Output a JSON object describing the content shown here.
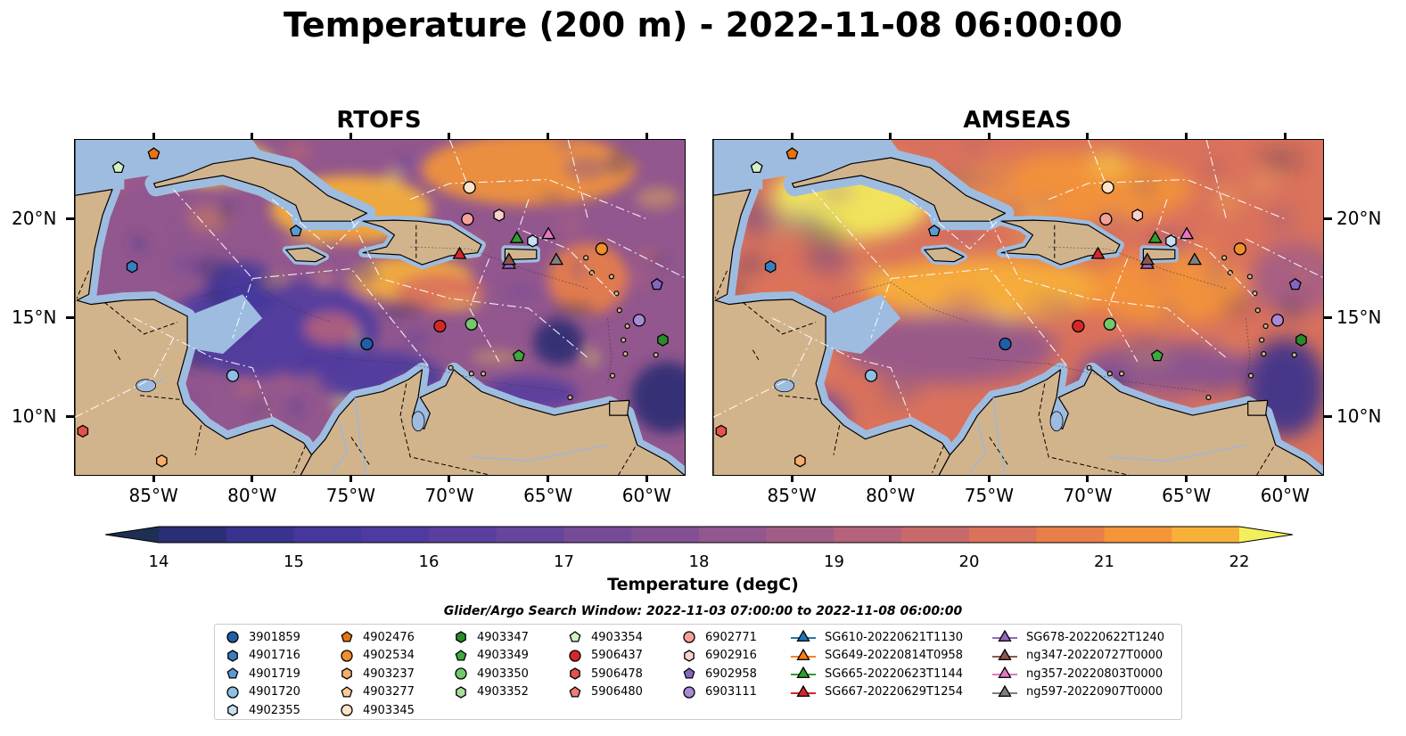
{
  "title": "Temperature (200 m) - 2022-11-08 06:00:00",
  "panels": [
    {
      "title": "RTOFS"
    },
    {
      "title": "AMSEAS"
    }
  ],
  "axes": {
    "lon_ticks": [
      "85°W",
      "80°W",
      "75°W",
      "70°W",
      "65°W",
      "60°W"
    ],
    "lat_ticks": [
      "20°N",
      "15°N",
      "10°N"
    ]
  },
  "colorbar": {
    "label": "Temperature (degC)",
    "ticks": [
      "14",
      "15",
      "16",
      "17",
      "18",
      "19",
      "20",
      "21",
      "22"
    ],
    "min": 14,
    "max": 22,
    "step": 0.5,
    "colors": [
      "#1d2f52",
      "#2b2e73",
      "#39328e",
      "#45379c",
      "#4e3aa0",
      "#5a3f9f",
      "#67459d",
      "#754b98",
      "#835193",
      "#92578e",
      "#a25d86",
      "#b5627c",
      "#c86a6c",
      "#da725c",
      "#e97f48",
      "#f49538",
      "#f8b138",
      "#fad042",
      "#f3ef5c"
    ],
    "extend": "both",
    "cmap": "thermal"
  },
  "search_window": "Glider/Argo Search Window: 2022-11-03 07:00:00 to 2022-11-08 06:00:00",
  "legend": {
    "columns": [
      [
        {
          "label": "3901859",
          "marker": "circle",
          "color": "#1f5fa8"
        },
        {
          "label": "4901716",
          "marker": "hexagon",
          "color": "#3a7ebf"
        },
        {
          "label": "4901719",
          "marker": "pentagon",
          "color": "#5a9bd4"
        },
        {
          "label": "4901720",
          "marker": "circle",
          "color": "#8ec0e4"
        },
        {
          "label": "4902355",
          "marker": "hexagon",
          "color": "#c6e0f3"
        }
      ],
      [
        {
          "label": "4902476",
          "marker": "pentagon",
          "color": "#e8740c"
        },
        {
          "label": "4902534",
          "marker": "circle",
          "color": "#f28e2b"
        },
        {
          "label": "4903237",
          "marker": "hexagon",
          "color": "#f8ad6a"
        },
        {
          "label": "4903277",
          "marker": "pentagon",
          "color": "#fbc998"
        },
        {
          "label": "4903345",
          "marker": "circle",
          "color": "#fde3c8"
        }
      ],
      [
        {
          "label": "4903347",
          "marker": "hexagon",
          "color": "#2b8a2b"
        },
        {
          "label": "4903349",
          "marker": "pentagon",
          "color": "#3fa83f"
        },
        {
          "label": "4903350",
          "marker": "circle",
          "color": "#72c96a"
        },
        {
          "label": "4903352",
          "marker": "hexagon",
          "color": "#a6df9a"
        }
      ],
      [
        {
          "label": "4903354",
          "marker": "pentagon",
          "color": "#d2f2c6"
        },
        {
          "label": "5906437",
          "marker": "circle",
          "color": "#d62728"
        },
        {
          "label": "5906478",
          "marker": "hexagon",
          "color": "#e2524c"
        },
        {
          "label": "5906480",
          "marker": "pentagon",
          "color": "#ec7c74"
        }
      ],
      [
        {
          "label": "6902771",
          "marker": "circle",
          "color": "#f4a19a"
        },
        {
          "label": "6902916",
          "marker": "hexagon",
          "color": "#fbd0cb"
        },
        {
          "label": "6902958",
          "marker": "pentagon",
          "color": "#8466c2"
        },
        {
          "label": "6903111",
          "marker": "circle",
          "color": "#a98ad6"
        }
      ],
      [
        {
          "label": "SG610-20220621T1130",
          "marker": "triangle",
          "color": "#1f77b4"
        },
        {
          "label": "SG649-20220814T0958",
          "marker": "triangle",
          "color": "#ff7f0e"
        },
        {
          "label": "SG665-20220623T1144",
          "marker": "triangle",
          "color": "#2ca02c"
        },
        {
          "label": "SG667-20220629T1254",
          "marker": "triangle",
          "color": "#d62728"
        }
      ],
      [
        {
          "label": "SG678-20220622T1240",
          "marker": "triangle",
          "color": "#9467bd"
        },
        {
          "label": "ng347-20220727T0000",
          "marker": "triangle",
          "color": "#8c564b"
        },
        {
          "label": "ng357-20220803T0000",
          "marker": "triangle",
          "color": "#e377c2"
        },
        {
          "label": "ng597-20220907T0000",
          "marker": "triangle",
          "color": "#7f7f7f"
        }
      ]
    ]
  },
  "chart_data": {
    "type": "heatmap",
    "variable": "Temperature (200 m)",
    "units": "degC",
    "lon_range": [
      -89,
      -58
    ],
    "lat_range": [
      7,
      24
    ],
    "color_range": [
      14,
      22
    ],
    "land_color": "#d2b48c",
    "shelf_color": "#9ebce0",
    "observations": [
      {
        "id": "4903354",
        "lon": -86.8,
        "lat": 22.6,
        "marker": "pentagon",
        "color": "#d2f2c6"
      },
      {
        "id": "4902476",
        "lon": -85.0,
        "lat": 23.3,
        "marker": "pentagon",
        "color": "#e8740c"
      },
      {
        "id": "4901716",
        "lon": -86.1,
        "lat": 17.6,
        "marker": "hexagon",
        "color": "#3a7ebf"
      },
      {
        "id": "4901719",
        "lon": -77.8,
        "lat": 19.4,
        "marker": "pentagon",
        "color": "#5a9bd4"
      },
      {
        "id": "4903345",
        "lon": -69.0,
        "lat": 21.6,
        "marker": "circle",
        "color": "#fde3c8"
      },
      {
        "id": "6902771",
        "lon": -69.1,
        "lat": 20.0,
        "marker": "circle",
        "color": "#f4a19a"
      },
      {
        "id": "6902916",
        "lon": -67.5,
        "lat": 20.2,
        "marker": "hexagon",
        "color": "#fbd0cb"
      },
      {
        "id": "SG665-20220623T1144",
        "lon": -66.6,
        "lat": 19.0,
        "marker": "triangle",
        "color": "#2ca02c"
      },
      {
        "id": "4902355",
        "lon": -65.8,
        "lat": 18.9,
        "marker": "hexagon",
        "color": "#c6e0f3"
      },
      {
        "id": "ng357-20220803T0000",
        "lon": -65.0,
        "lat": 19.2,
        "marker": "triangle",
        "color": "#e377c2"
      },
      {
        "id": "SG667-20220629T1254",
        "lon": -69.5,
        "lat": 18.2,
        "marker": "triangle",
        "color": "#d62728"
      },
      {
        "id": "SG678-20220622T1240",
        "lon": -67.0,
        "lat": 17.7,
        "marker": "triangle",
        "color": "#9467bd"
      },
      {
        "id": "ng347-20220727T0000",
        "lon": -67.0,
        "lat": 17.9,
        "marker": "triangle",
        "color": "#8c564b"
      },
      {
        "id": "ng597-20220907T0000",
        "lon": -64.6,
        "lat": 17.9,
        "marker": "triangle",
        "color": "#7f7f7f"
      },
      {
        "id": "4902534",
        "lon": -62.3,
        "lat": 18.5,
        "marker": "circle",
        "color": "#f28e2b"
      },
      {
        "id": "6902958",
        "lon": -59.5,
        "lat": 16.7,
        "marker": "pentagon",
        "color": "#8466c2"
      },
      {
        "id": "6903111",
        "lon": -60.4,
        "lat": 14.9,
        "marker": "circle",
        "color": "#a98ad6"
      },
      {
        "id": "4903347",
        "lon": -59.2,
        "lat": 13.9,
        "marker": "hexagon",
        "color": "#2b8a2b"
      },
      {
        "id": "5906437",
        "lon": -70.5,
        "lat": 14.6,
        "marker": "circle",
        "color": "#d62728"
      },
      {
        "id": "4903350",
        "lon": -68.9,
        "lat": 14.7,
        "marker": "circle",
        "color": "#72c96a"
      },
      {
        "id": "4903349",
        "lon": -66.5,
        "lat": 13.1,
        "marker": "pentagon",
        "color": "#3fa83f"
      },
      {
        "id": "3901859",
        "lon": -74.2,
        "lat": 13.7,
        "marker": "circle",
        "color": "#1f5fa8"
      },
      {
        "id": "4901720",
        "lon": -81.0,
        "lat": 12.1,
        "marker": "circle",
        "color": "#8ec0e4"
      },
      {
        "id": "5906478",
        "lon": -88.6,
        "lat": 9.3,
        "marker": "hexagon",
        "color": "#e2524c"
      },
      {
        "id": "4903237",
        "lon": -84.6,
        "lat": 7.8,
        "marker": "hexagon",
        "color": "#f8ad6a"
      }
    ]
  }
}
